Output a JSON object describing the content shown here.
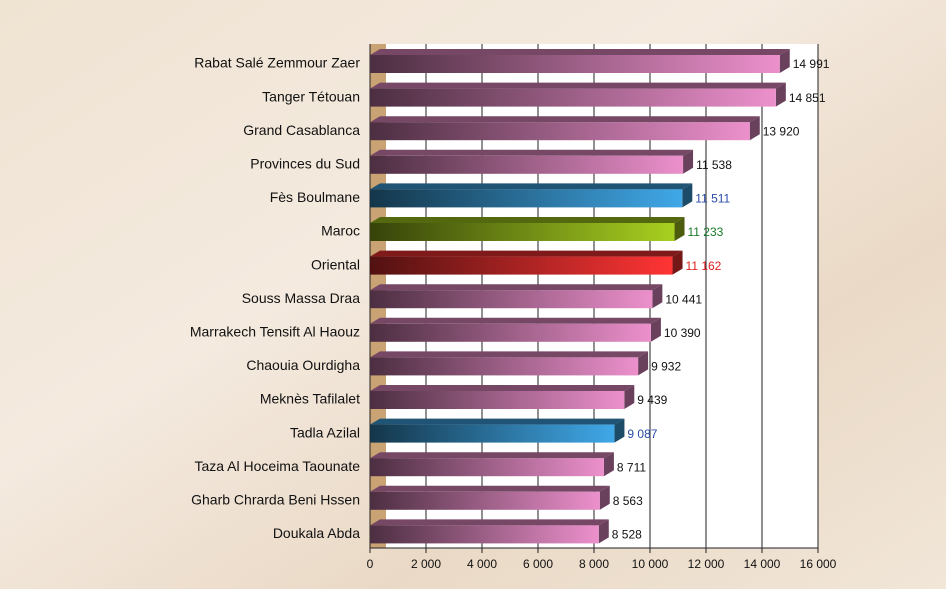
{
  "chart_data": {
    "type": "bar3d_horizontal",
    "categories": [
      "Rabat Salé Zemmour Zaer",
      "Tanger Tétouan",
      "Grand Casablanca",
      "Provinces du Sud",
      "Fès Boulmane",
      "Maroc",
      "Oriental",
      "Souss Massa Draa",
      "Marrakech Tensift Al Haouz",
      "Chaouia Ourdigha",
      "Meknès Tafilalet",
      "Tadla Azilal",
      "Taza Al Hoceima Taounate",
      "Gharb Chrarda Beni Hssen",
      "Doukala Abda"
    ],
    "values": [
      14991,
      14851,
      13920,
      11538,
      11511,
      11233,
      11162,
      10441,
      10390,
      9932,
      9439,
      9087,
      8711,
      8563,
      8528
    ],
    "value_labels": [
      "14 991",
      "14 851",
      "13 920",
      "11 538",
      "11 511",
      "11 233",
      "11 162",
      "10 441",
      "10 390",
      "9 932",
      "9 439",
      "9 087",
      "8 711",
      "8 563",
      "8 528"
    ],
    "colors": [
      "#ec90cc",
      "#ec90cc",
      "#ec90cc",
      "#ec90cc",
      "#40a8e8",
      "#a8d020",
      "#ff3434",
      "#ec90cc",
      "#ec90cc",
      "#ec90cc",
      "#ec90cc",
      "#40a8e8",
      "#ec90cc",
      "#ec90cc",
      "#ec90cc"
    ],
    "label_colors": [
      "#111111",
      "#111111",
      "#111111",
      "#111111",
      "#2a4aa8",
      "#1a7a2a",
      "#e02020",
      "#111111",
      "#111111",
      "#111111",
      "#111111",
      "#2a4aa8",
      "#111111",
      "#111111",
      "#111111"
    ],
    "xlim": [
      0,
      16000
    ],
    "xticks": [
      0,
      {
        "value": 2000,
        "label": "2 000"
      },
      {
        "value": 4000,
        "label": "4 000"
      },
      {
        "value": 6000,
        "label": "6 000"
      },
      {
        "value": 8000,
        "label": "8 000"
      },
      {
        "value": 10000,
        "label": "10 000"
      },
      {
        "value": 12000,
        "label": "12 000"
      },
      {
        "value": 14000,
        "label": "14 000"
      },
      {
        "value": 16000,
        "label": "16 000"
      }
    ],
    "grid": true
  }
}
